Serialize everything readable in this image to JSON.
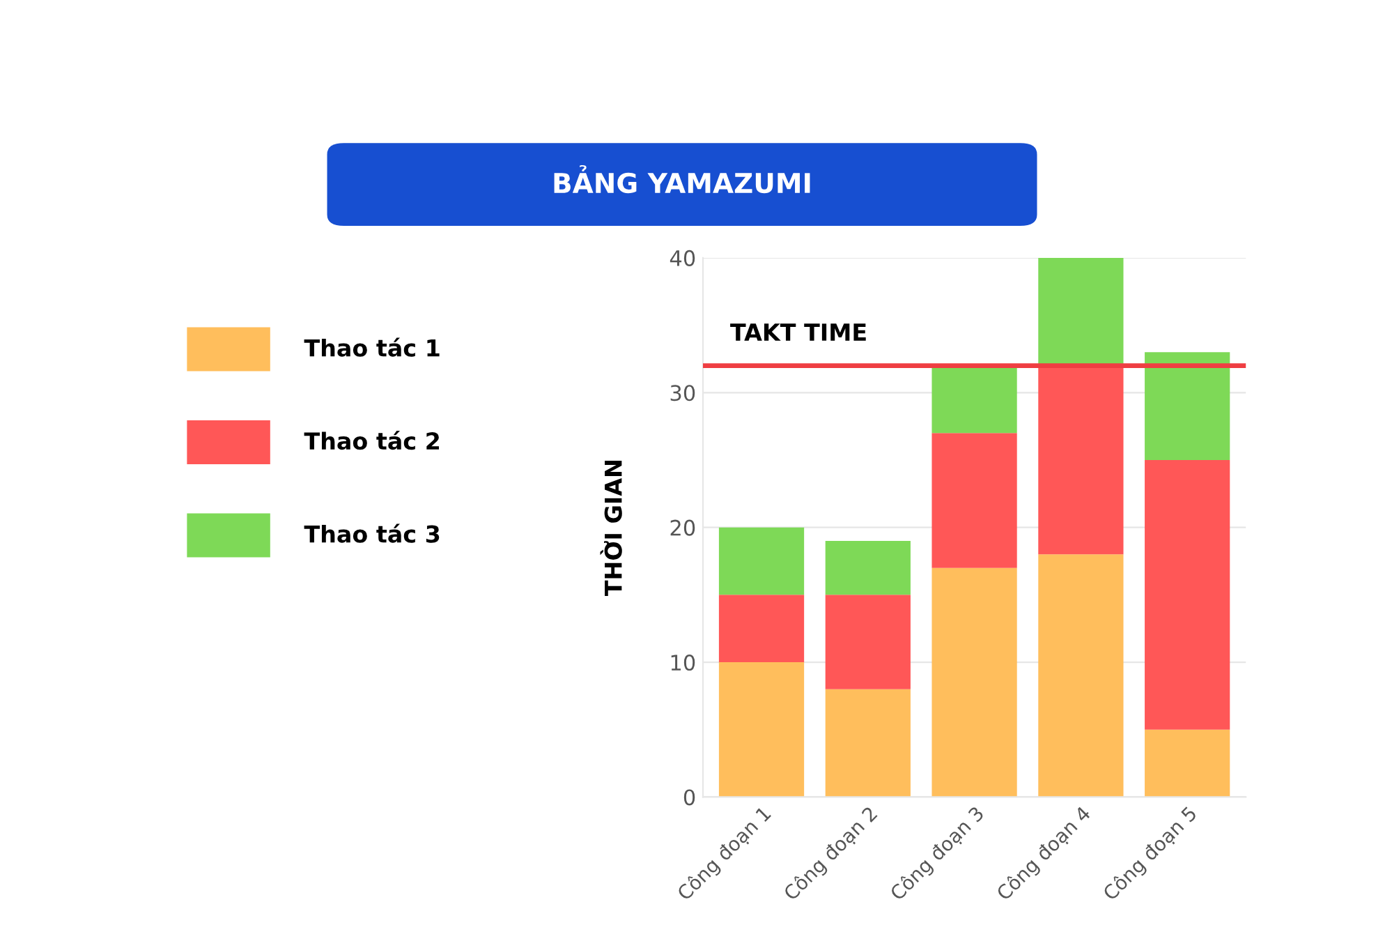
{
  "chart_data": {
    "type": "bar",
    "title": "BẢNG YAMAZUMI",
    "ylabel": "THỜI GIAN",
    "categories": [
      "Công đoạn 1",
      "Công đoạn 2",
      "Công đoạn 3",
      "Công đoạn 4",
      "Công đoạn 5"
    ],
    "stacked": true,
    "series": [
      {
        "name": "Thao tác 1",
        "color": "#ffbe5c",
        "values": [
          10,
          8,
          17,
          18,
          5
        ]
      },
      {
        "name": "Thao tác 2",
        "color": "#ff5757",
        "values": [
          5,
          7,
          10,
          14,
          20
        ]
      },
      {
        "name": "Thao tác 3",
        "color": "#7ed957",
        "values": [
          5,
          4,
          5,
          8,
          8
        ]
      }
    ],
    "ylim": [
      0,
      40
    ],
    "yticks": [
      0,
      10,
      20,
      30,
      40
    ],
    "grid": "y",
    "legend": "left",
    "ref_lines": [
      {
        "axis": "y",
        "value": 32,
        "label": "TAKT TIME",
        "color": "#ef3e42"
      }
    ]
  }
}
